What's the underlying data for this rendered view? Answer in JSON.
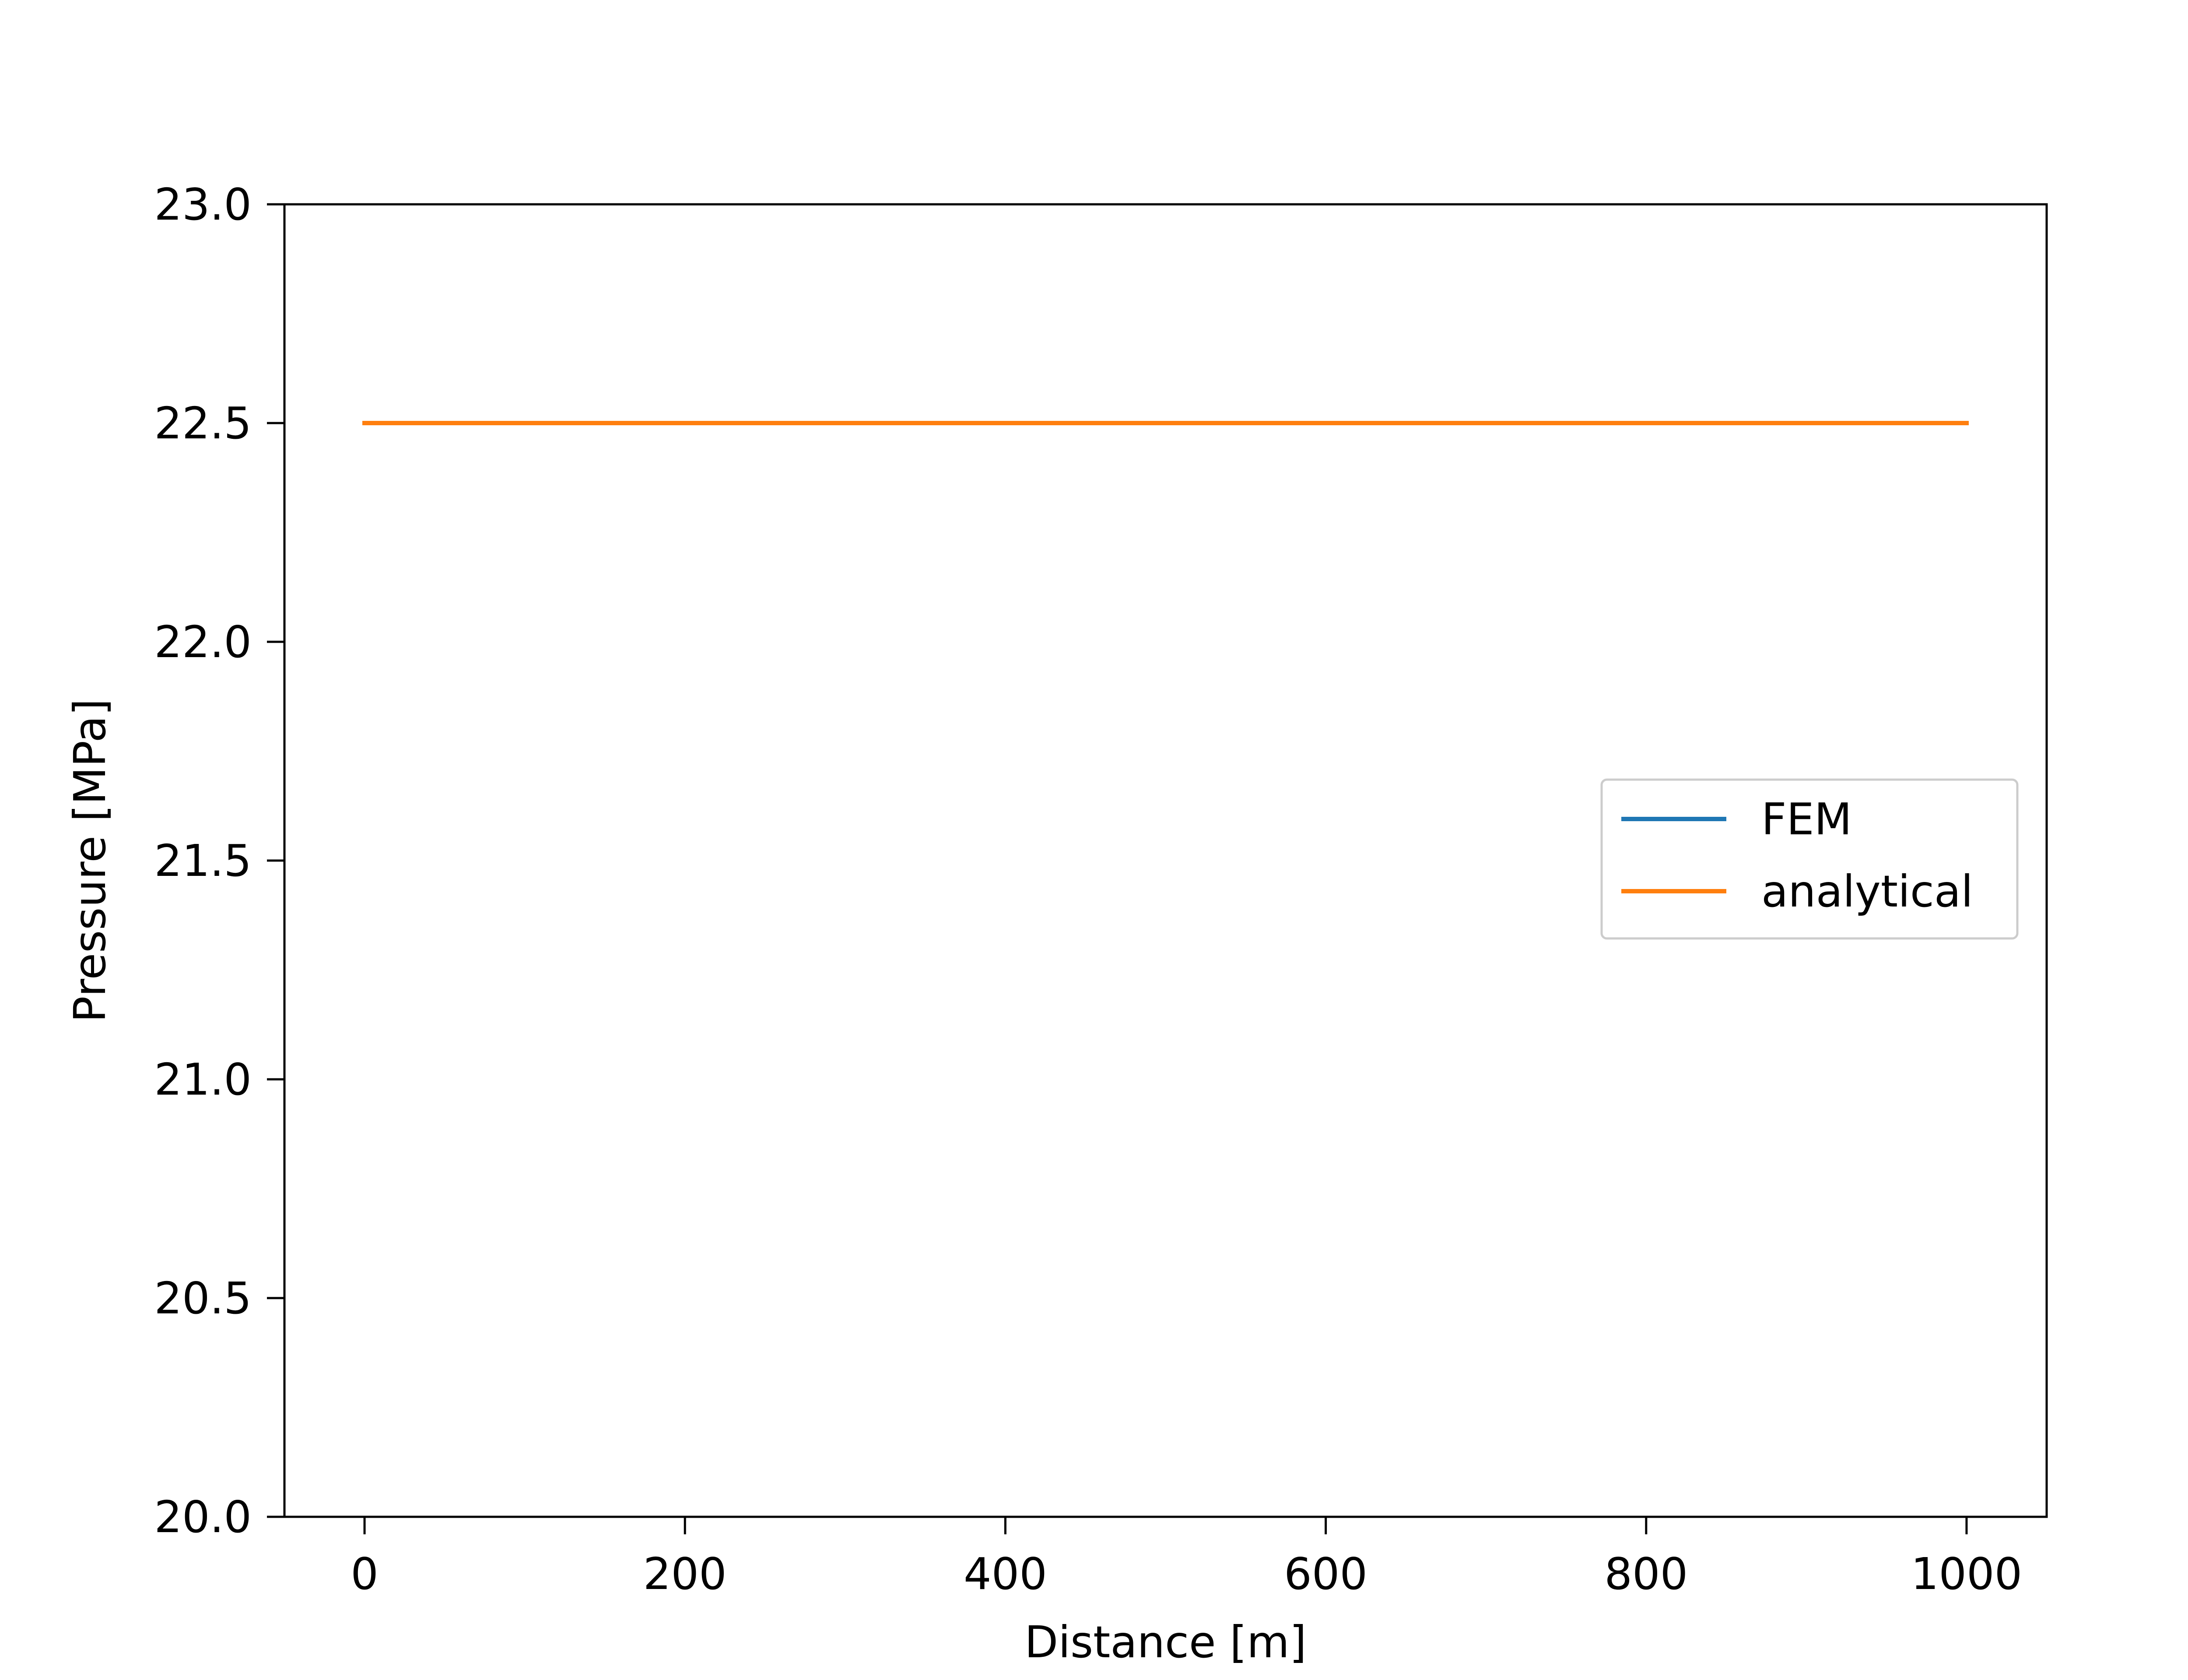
{
  "chart_data": {
    "type": "line",
    "title": "",
    "xlabel": "Distance [m]",
    "ylabel": "Pressure [MPa]",
    "xlim": [
      -50,
      1050
    ],
    "ylim": [
      20.0,
      23.0
    ],
    "x_ticks": [
      0,
      200,
      400,
      600,
      800,
      1000
    ],
    "x_tick_labels": [
      "0",
      "200",
      "400",
      "600",
      "800",
      "1000"
    ],
    "y_ticks": [
      20.0,
      20.5,
      21.0,
      21.5,
      22.0,
      22.5,
      23.0
    ],
    "y_tick_labels": [
      "20.0",
      "20.5",
      "21.0",
      "21.5",
      "22.0",
      "22.5",
      "23.0"
    ],
    "grid": false,
    "legend_position": "center-right",
    "series": [
      {
        "name": "FEM",
        "color": "#1f77b4",
        "x": [
          0,
          1000
        ],
        "y": [
          22.5,
          22.5
        ]
      },
      {
        "name": "analytical",
        "color": "#ff7f0e",
        "x": [
          0,
          1000
        ],
        "y": [
          22.5,
          22.5
        ]
      }
    ]
  }
}
